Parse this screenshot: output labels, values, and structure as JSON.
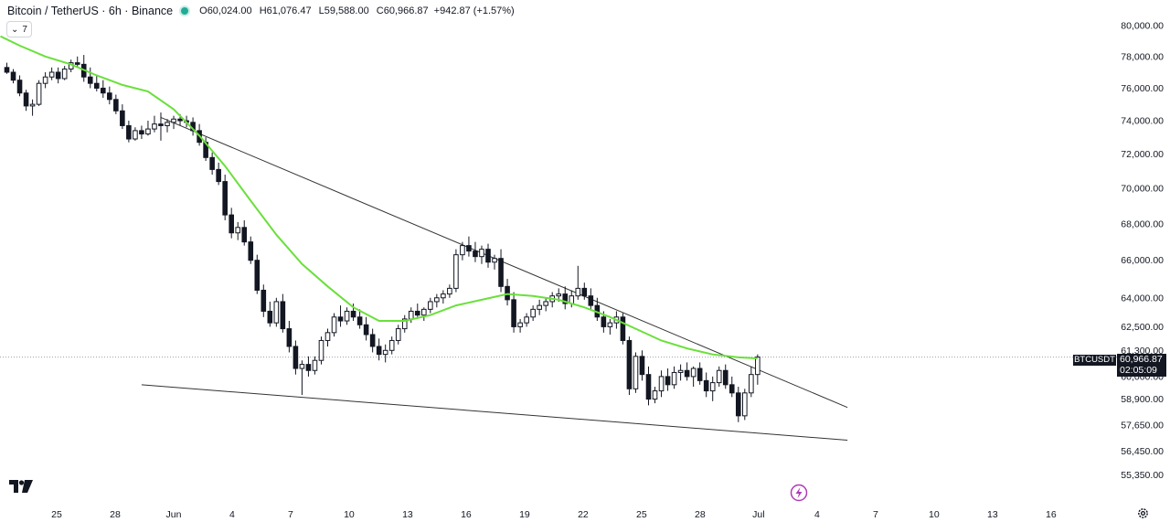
{
  "header": {
    "title": "Bitcoin / TetherUS · 6h · Binance",
    "ohlc": [
      {
        "label": "O",
        "value": "60,024.00"
      },
      {
        "label": "H",
        "value": "61,076.47"
      },
      {
        "label": "L",
        "value": "59,588.00"
      },
      {
        "label": "C",
        "value": "60,966.87"
      }
    ],
    "change": "+942.87 (+1.57%)",
    "status_color": "#22ab94"
  },
  "indicator_toggle": {
    "label": "7",
    "icon": "chevron-down-icon"
  },
  "price_tag": {
    "symbol": "BTCUSDT",
    "price": "60,966.87",
    "countdown": "02:05:09"
  },
  "colors": {
    "up": "#131722",
    "down": "#131722",
    "ma": "#6ae03b",
    "trendline": "#333333",
    "last_price_line": "#9aa0ab",
    "bolt": "#b03ab5"
  },
  "icons": [
    "tradingview-logo-icon",
    "lightning-icon",
    "settings-gear-icon"
  ],
  "chart_data": {
    "type": "candlestick",
    "y_axis": {
      "ticks": [
        {
          "value": 80000,
          "label": "80,000.00"
        },
        {
          "value": 78000,
          "label": "78,000.00"
        },
        {
          "value": 76000,
          "label": "76,000.00"
        },
        {
          "value": 74000,
          "label": "74,000.00"
        },
        {
          "value": 72000,
          "label": "72,000.00"
        },
        {
          "value": 70000,
          "label": "70,000.00"
        },
        {
          "value": 68000,
          "label": "68,000.00"
        },
        {
          "value": 66000,
          "label": "66,000.00"
        },
        {
          "value": 64000,
          "label": "64,000.00"
        },
        {
          "value": 62500,
          "label": "62,500.00"
        },
        {
          "value": 61300,
          "label": "61,300.00"
        },
        {
          "value": 60000,
          "label": "60,000.00"
        },
        {
          "value": 58900,
          "label": "58,900.00"
        },
        {
          "value": 57650,
          "label": "57,650.00"
        },
        {
          "value": 56450,
          "label": "56,450.00"
        },
        {
          "value": 55350,
          "label": "55,350.00"
        }
      ],
      "scale": "log"
    },
    "x_axis": {
      "ticks": [
        {
          "day": 25,
          "label": "25"
        },
        {
          "day": 28,
          "label": "28"
        },
        {
          "day": 31,
          "label": "Jun"
        },
        {
          "day": 34,
          "label": "4"
        },
        {
          "day": 37,
          "label": "7"
        },
        {
          "day": 40,
          "label": "10"
        },
        {
          "day": 43,
          "label": "13"
        },
        {
          "day": 46,
          "label": "16"
        },
        {
          "day": 49,
          "label": "19"
        },
        {
          "day": 52,
          "label": "22"
        },
        {
          "day": 55,
          "label": "25"
        },
        {
          "day": 58,
          "label": "28"
        },
        {
          "day": 61,
          "label": "Jul"
        },
        {
          "day": 64,
          "label": "4"
        },
        {
          "day": 67,
          "label": "7"
        },
        {
          "day": 70,
          "label": "10"
        },
        {
          "day": 73,
          "label": "13"
        },
        {
          "day": 76,
          "label": "16"
        }
      ],
      "note": "day index: May 1 = 1, Jun 1 = 32, Jul 1 = 62"
    },
    "last_price": 60966.87,
    "candles": [
      [
        77300,
        77600,
        76900,
        77000
      ],
      [
        77000,
        77200,
        76300,
        76500
      ],
      [
        76500,
        76800,
        75500,
        75700
      ],
      [
        75700,
        75900,
        74600,
        74900
      ],
      [
        74900,
        75300,
        74300,
        75000
      ],
      [
        75000,
        76500,
        74900,
        76300
      ],
      [
        76300,
        77000,
        76000,
        76700
      ],
      [
        76700,
        77300,
        76500,
        77000
      ],
      [
        77000,
        77300,
        76300,
        76600
      ],
      [
        76600,
        77400,
        76500,
        77200
      ],
      [
        77200,
        77800,
        77000,
        77600
      ],
      [
        77600,
        78000,
        77300,
        77500
      ],
      [
        77500,
        78100,
        76400,
        76700
      ],
      [
        76700,
        77300,
        76000,
        76300
      ],
      [
        76300,
        76800,
        75800,
        76000
      ],
      [
        76000,
        76500,
        75400,
        75700
      ],
      [
        75700,
        76100,
        75000,
        75300
      ],
      [
        75300,
        75600,
        74400,
        74600
      ],
      [
        74600,
        75000,
        73500,
        73700
      ],
      [
        73700,
        74000,
        72700,
        72900
      ],
      [
        72900,
        73600,
        72800,
        73400
      ],
      [
        73400,
        73700,
        72900,
        73200
      ],
      [
        73200,
        74000,
        73100,
        73500
      ],
      [
        73500,
        74300,
        73300,
        73800
      ],
      [
        73800,
        74500,
        72800,
        73700
      ],
      [
        73700,
        74100,
        73300,
        73900
      ],
      [
        73900,
        74300,
        73500,
        74100
      ],
      [
        74100,
        74400,
        73700,
        74000
      ],
      [
        74000,
        74300,
        73600,
        73900
      ],
      [
        73900,
        74200,
        73100,
        73400
      ],
      [
        73400,
        73800,
        72500,
        72700
      ],
      [
        72700,
        73000,
        71600,
        71800
      ],
      [
        71800,
        72100,
        70800,
        71100
      ],
      [
        71100,
        71500,
        70200,
        70400
      ],
      [
        70400,
        70800,
        68200,
        68500
      ],
      [
        68500,
        68900,
        67200,
        67500
      ],
      [
        67500,
        68100,
        67100,
        67800
      ],
      [
        67800,
        68200,
        66800,
        67000
      ],
      [
        67000,
        67300,
        65800,
        66000
      ],
      [
        66000,
        66300,
        64200,
        64400
      ],
      [
        64400,
        64700,
        63000,
        63300
      ],
      [
        63300,
        63800,
        62500,
        62700
      ],
      [
        62700,
        64000,
        62500,
        63800
      ],
      [
        63800,
        64200,
        62200,
        62400
      ],
      [
        62400,
        62800,
        61200,
        61500
      ],
      [
        61500,
        61800,
        60100,
        60400
      ],
      [
        60400,
        60800,
        59100,
        60600
      ],
      [
        60600,
        61000,
        60000,
        60300
      ],
      [
        60300,
        61000,
        60100,
        60800
      ],
      [
        60800,
        62000,
        60600,
        61800
      ],
      [
        61800,
        62400,
        61500,
        62200
      ],
      [
        62200,
        63200,
        62000,
        63000
      ],
      [
        63000,
        63600,
        62500,
        62800
      ],
      [
        62800,
        63500,
        62600,
        63300
      ],
      [
        63300,
        63700,
        62800,
        63000
      ],
      [
        63000,
        63400,
        62400,
        62600
      ],
      [
        62600,
        63000,
        61800,
        62100
      ],
      [
        62100,
        62400,
        61200,
        61500
      ],
      [
        61500,
        61900,
        60800,
        61100
      ],
      [
        61100,
        61600,
        60700,
        61300
      ],
      [
        61300,
        62000,
        61100,
        61800
      ],
      [
        61800,
        62600,
        61600,
        62400
      ],
      [
        62400,
        63100,
        62200,
        62900
      ],
      [
        62900,
        63500,
        62700,
        63300
      ],
      [
        63300,
        63700,
        63000,
        63100
      ],
      [
        63100,
        63500,
        62800,
        63400
      ],
      [
        63400,
        64000,
        63200,
        63800
      ],
      [
        63800,
        64200,
        63500,
        64000
      ],
      [
        64000,
        64400,
        63700,
        64200
      ],
      [
        64200,
        64700,
        64000,
        64500
      ],
      [
        64500,
        66600,
        64300,
        66300
      ],
      [
        66300,
        67000,
        66000,
        66800
      ],
      [
        66800,
        67300,
        66200,
        66500
      ],
      [
        66500,
        67000,
        65900,
        66200
      ],
      [
        66200,
        66800,
        65800,
        66600
      ],
      [
        66600,
        66900,
        65600,
        65900
      ],
      [
        65900,
        66300,
        65500,
        66100
      ],
      [
        66100,
        66600,
        64300,
        64600
      ],
      [
        64600,
        65000,
        63600,
        63900
      ],
      [
        63900,
        64300,
        62200,
        62500
      ],
      [
        62500,
        62900,
        62200,
        62700
      ],
      [
        62700,
        63200,
        62500,
        63000
      ],
      [
        63000,
        63600,
        62800,
        63400
      ],
      [
        63400,
        63900,
        63100,
        63600
      ],
      [
        63600,
        64000,
        63300,
        63800
      ],
      [
        63800,
        64300,
        63500,
        64100
      ],
      [
        64100,
        64500,
        63800,
        64200
      ],
      [
        64200,
        64600,
        63400,
        63700
      ],
      [
        63700,
        64400,
        63500,
        64100
      ],
      [
        64100,
        65700,
        63900,
        64500
      ],
      [
        64500,
        64800,
        63900,
        64100
      ],
      [
        64100,
        64500,
        63400,
        63600
      ],
      [
        63600,
        64000,
        62800,
        63000
      ],
      [
        63000,
        63300,
        62200,
        62500
      ],
      [
        62500,
        62900,
        62100,
        62700
      ],
      [
        62700,
        63300,
        62400,
        63000
      ],
      [
        63000,
        63200,
        61600,
        61800
      ],
      [
        61800,
        62000,
        59100,
        59400
      ],
      [
        59400,
        61200,
        59200,
        61000
      ],
      [
        61000,
        61300,
        59800,
        60100
      ],
      [
        60100,
        60500,
        58600,
        58900
      ],
      [
        58900,
        59500,
        58700,
        59300
      ],
      [
        59300,
        60300,
        59000,
        60000
      ],
      [
        60000,
        60400,
        59300,
        59600
      ],
      [
        59600,
        60500,
        59400,
        60200
      ],
      [
        60200,
        60600,
        59800,
        60300
      ],
      [
        60300,
        60700,
        59800,
        60000
      ],
      [
        60000,
        60500,
        59500,
        60400
      ],
      [
        60400,
        60700,
        59600,
        59800
      ],
      [
        59800,
        60200,
        59000,
        59300
      ],
      [
        59300,
        60000,
        58800,
        59700
      ],
      [
        59700,
        60500,
        59500,
        60300
      ],
      [
        60300,
        60600,
        59400,
        59600
      ],
      [
        59600,
        60000,
        59000,
        59200
      ],
      [
        59200,
        59500,
        57800,
        58100
      ],
      [
        58100,
        59400,
        57900,
        59200
      ],
      [
        59200,
        60500,
        59000,
        60100
      ],
      [
        60100,
        61100,
        59600,
        60967
      ]
    ],
    "moving_average": {
      "name": "7",
      "x": [
        -1,
        2,
        6,
        10,
        14,
        18,
        22,
        26,
        30,
        34,
        38,
        42,
        46,
        50,
        54,
        58,
        62,
        66,
        70,
        74,
        78,
        82,
        86,
        90,
        94,
        98,
        102,
        106,
        110,
        114,
        117
      ],
      "y": [
        79300,
        78700,
        78000,
        77500,
        76800,
        76200,
        75800,
        74700,
        73100,
        71300,
        69300,
        67400,
        65800,
        64600,
        63500,
        62800,
        62800,
        63100,
        63600,
        63900,
        64200,
        64100,
        63900,
        63500,
        63000,
        62400,
        61800,
        61400,
        61100,
        60950,
        60900
      ]
    },
    "trendlines": [
      {
        "name": "upper",
        "x1": 24,
        "y1": 74200,
        "x2": 131,
        "y2": 58500
      },
      {
        "name": "lower",
        "x1": 21,
        "y1": 59600,
        "x2": 131,
        "y2": 56950
      }
    ]
  }
}
